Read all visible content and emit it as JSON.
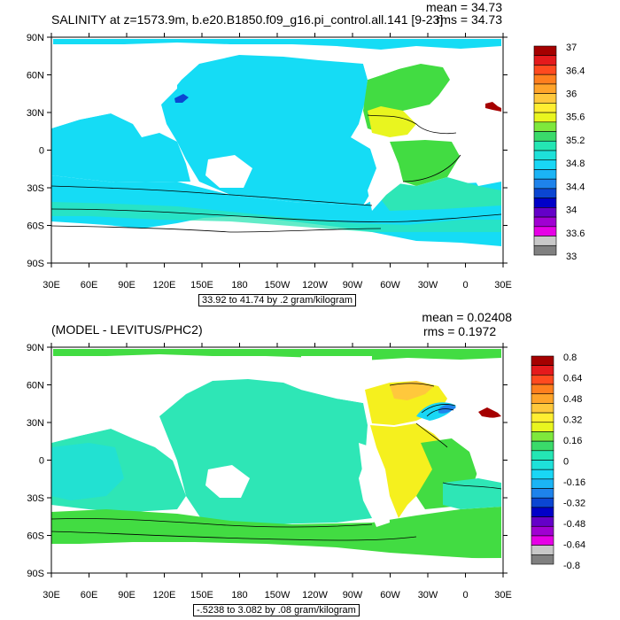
{
  "colors": {
    "ocean_cyan": "#15dcf5",
    "ocean_teal": "#2ee6b6",
    "green": "#42dc42",
    "yellow": "#f5f01e",
    "land": "#ffffff"
  },
  "lat_labels": [
    "90N",
    "60N",
    "30N",
    "0",
    "30S",
    "60S",
    "90S"
  ],
  "lon_labels": [
    "30E",
    "60E",
    "90E",
    "120E",
    "150E",
    "180",
    "150W",
    "120W",
    "90W",
    "60W",
    "30W",
    "0",
    "30E"
  ],
  "panels": [
    {
      "title": "SALINITY at z=1573.9m, b.e20.B1850.f09_g16.pi_control.all.141 [9-23]",
      "mean": "mean = 34.73",
      "rms": "rms = 34.73",
      "range_text": "33.92 to 41.74 by .2 gram/kilogram",
      "legend": {
        "labels": [
          "37",
          "36.4",
          "36",
          "35.6",
          "35.2",
          "34.8",
          "34.4",
          "34",
          "33.6",
          "33"
        ],
        "colors": [
          "#a50000",
          "#e41a1c",
          "#ff4a1f",
          "#ff7f1e",
          "#ffa42a",
          "#ffc83c",
          "#ffee32",
          "#e9f51f",
          "#7ee83c",
          "#3ada6a",
          "#24e6b4",
          "#1ee1d9",
          "#19d7f5",
          "#1bb4f5",
          "#1e83eb",
          "#0b46d2",
          "#0000c8",
          "#6400c8",
          "#a000d2",
          "#e600e6",
          "#c8c8c8",
          "#808080"
        ]
      }
    },
    {
      "title": "(MODEL - LEVITUS/PHC2)",
      "mean": "mean = 0.02408",
      "rms": "rms = 0.1972",
      "range_text": "-.5238 to 3.082 by .08 gram/kilogram",
      "legend": {
        "labels": [
          "0.8",
          "0.64",
          "0.48",
          "0.32",
          "0.16",
          "0",
          "-0.16",
          "-0.32",
          "-0.48",
          "-0.64",
          "-0.8"
        ],
        "colors": [
          "#a50000",
          "#e41a1c",
          "#ff4a1f",
          "#ff7f1e",
          "#ffa42a",
          "#ffc83c",
          "#ffee32",
          "#e9f51f",
          "#7ee83c",
          "#3ada6a",
          "#24e6b4",
          "#1ee1d9",
          "#19d7f5",
          "#1bb4f5",
          "#1e83eb",
          "#0b46d2",
          "#0000c8",
          "#6400c8",
          "#a000d2",
          "#e600e6",
          "#c8c8c8",
          "#808080"
        ]
      }
    }
  ]
}
